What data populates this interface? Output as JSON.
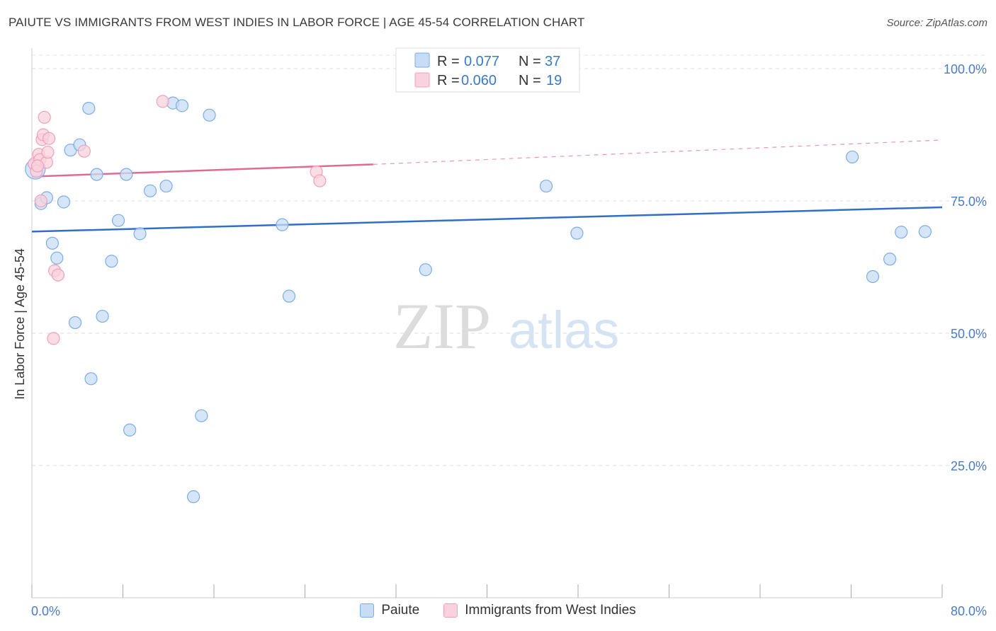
{
  "chart_data": {
    "type": "scatter",
    "title": "PAIUTE VS IMMIGRANTS FROM WEST INDIES IN LABOR FORCE | AGE 45-54 CORRELATION CHART",
    "source": "Source: ZipAtlas.com",
    "ylabel": "In Labor Force | Age 45-54",
    "xlim": [
      0,
      80
    ],
    "ylim": [
      0,
      105
    ],
    "x_tick_labels": [
      "0.0%",
      "80.0%"
    ],
    "y_tick_labels": [
      "25.0%",
      "50.0%",
      "75.0%",
      "100.0%"
    ],
    "y_ticks": [
      25,
      50,
      75,
      100
    ],
    "grid": true,
    "watermark": {
      "zip": "ZIP",
      "atlas": "atlas"
    },
    "legend": {
      "placement": "top-center",
      "entries": [
        {
          "r_label": "R =",
          "r_value": "0.077",
          "n_label": "N =",
          "n_value": "37"
        },
        {
          "r_label": "R =",
          "r_value": "0.060",
          "n_label": "N =",
          "n_value": "19"
        }
      ]
    },
    "series": [
      {
        "name": "Paiute",
        "color": "#7aaee8",
        "fill": "#c9dcf5",
        "trend": {
          "x": [
            0,
            80
          ],
          "y": [
            69.2,
            73.8
          ],
          "color": "#2f6fc8"
        },
        "points": [
          [
            0.3,
            81.0
          ],
          [
            0.8,
            74.5
          ],
          [
            1.3,
            75.6
          ],
          [
            1.8,
            67.0
          ],
          [
            2.2,
            64.2
          ],
          [
            2.8,
            74.8
          ],
          [
            3.4,
            84.6
          ],
          [
            3.8,
            52.0
          ],
          [
            4.2,
            85.6
          ],
          [
            5.0,
            92.5
          ],
          [
            5.2,
            41.4
          ],
          [
            5.7,
            80.0
          ],
          [
            6.2,
            53.2
          ],
          [
            7.0,
            63.6
          ],
          [
            7.6,
            71.3
          ],
          [
            8.3,
            80.0
          ],
          [
            8.6,
            31.7
          ],
          [
            9.5,
            68.8
          ],
          [
            10.4,
            76.9
          ],
          [
            11.8,
            77.8
          ],
          [
            12.4,
            93.5
          ],
          [
            13.2,
            93.0
          ],
          [
            14.2,
            19.1
          ],
          [
            14.9,
            34.4
          ],
          [
            15.6,
            91.2
          ],
          [
            22.0,
            70.5
          ],
          [
            22.6,
            57.0
          ],
          [
            34.6,
            62.0
          ],
          [
            45.2,
            77.8
          ],
          [
            47.9,
            68.9
          ],
          [
            45.5,
            100.0
          ],
          [
            72.1,
            83.3
          ],
          [
            73.9,
            60.7
          ],
          [
            75.4,
            64.0
          ],
          [
            76.4,
            69.1
          ],
          [
            78.5,
            69.2
          ],
          [
            45.0,
            100.0
          ]
        ]
      },
      {
        "name": "Immigrants from West Indies",
        "color": "#f0a0b8",
        "fill": "#f9d2dd",
        "trend": {
          "x": [
            0,
            30
          ],
          "y": [
            79.6,
            81.9
          ],
          "dash_to": [
            80,
            86.5
          ],
          "color": "#e06a92"
        },
        "points": [
          [
            0.2,
            82.0
          ],
          [
            0.4,
            80.6
          ],
          [
            0.6,
            83.8
          ],
          [
            0.7,
            82.8
          ],
          [
            0.8,
            75.0
          ],
          [
            0.9,
            86.6
          ],
          [
            1.0,
            87.5
          ],
          [
            1.1,
            90.8
          ],
          [
            1.3,
            82.3
          ],
          [
            1.4,
            84.2
          ],
          [
            1.5,
            86.8
          ],
          [
            1.9,
            49.0
          ],
          [
            2.0,
            61.8
          ],
          [
            2.3,
            61.0
          ],
          [
            4.6,
            84.4
          ],
          [
            11.5,
            93.8
          ],
          [
            25.0,
            80.5
          ],
          [
            25.3,
            78.8
          ],
          [
            0.5,
            81.6
          ]
        ]
      }
    ]
  }
}
